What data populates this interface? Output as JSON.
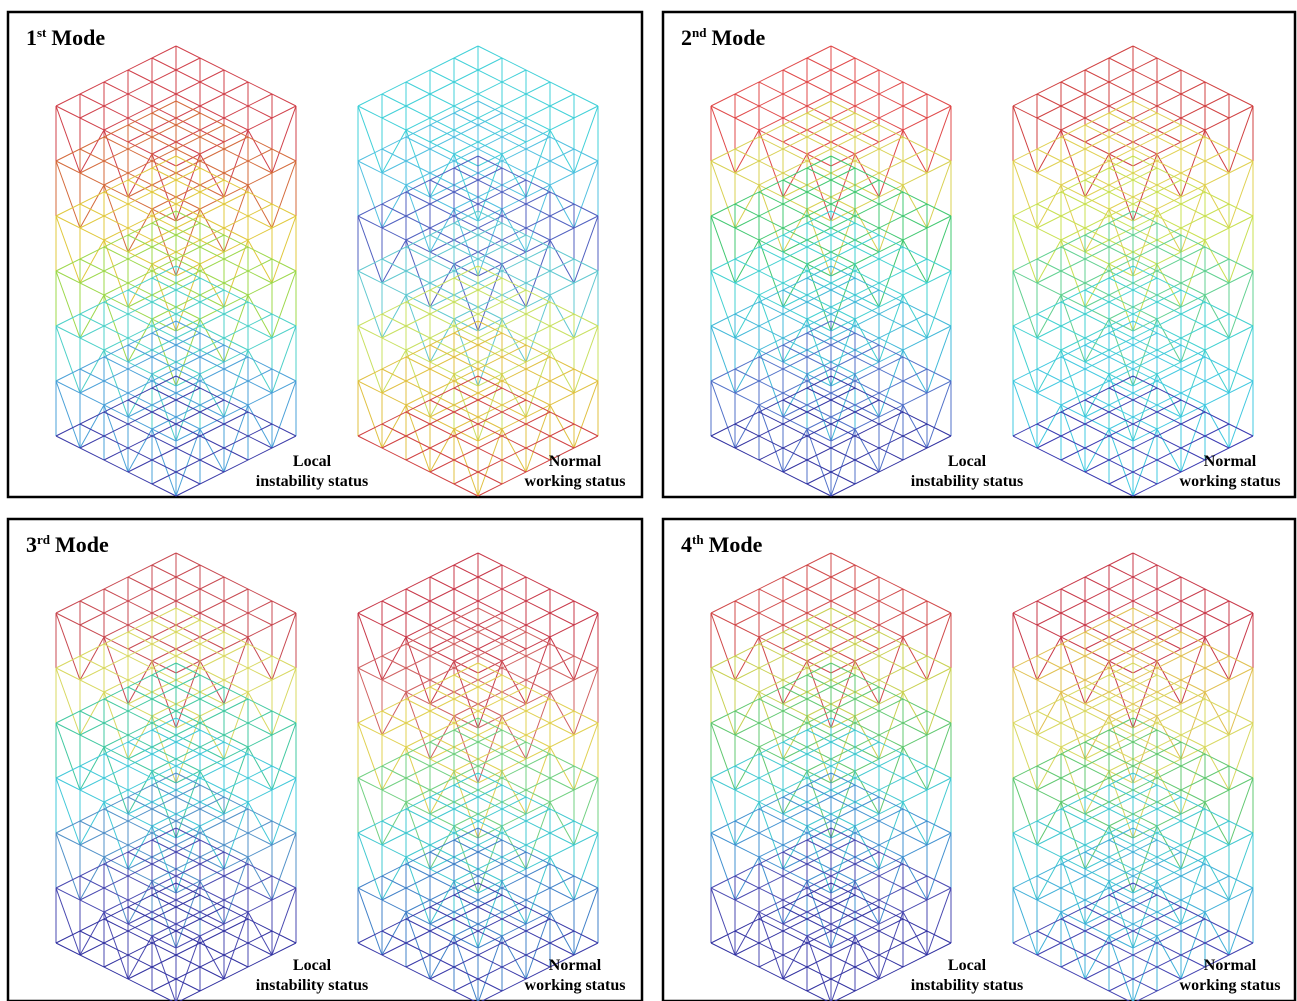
{
  "panels": [
    {
      "title": {
        "number": "1",
        "suffix": "st",
        "word": "Mode"
      },
      "left_label": [
        "Local",
        "instability status"
      ],
      "right_label": [
        "Normal",
        "working status"
      ]
    },
    {
      "title": {
        "number": "2",
        "suffix": "nd",
        "word": "Mode"
      },
      "left_label": [
        "Local",
        "instability status"
      ],
      "right_label": [
        "Normal",
        "working status"
      ]
    },
    {
      "title": {
        "number": "3",
        "suffix": "rd",
        "word": "Mode"
      },
      "left_label": [
        "Local",
        "instability status"
      ],
      "right_label": [
        "Normal",
        "working status"
      ]
    },
    {
      "title": {
        "number": "4",
        "suffix": "th",
        "word": "Mode"
      },
      "left_label": [
        "Local",
        "instability status"
      ],
      "right_label": [
        "Normal",
        "working status"
      ]
    }
  ]
}
